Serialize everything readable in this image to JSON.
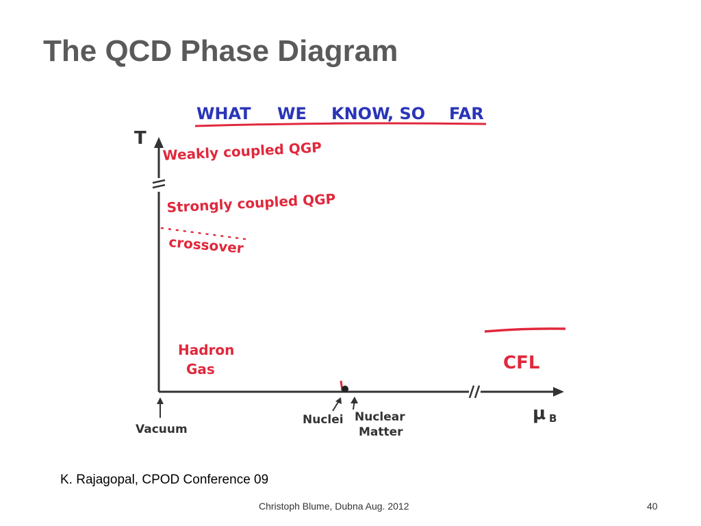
{
  "slide": {
    "title": "The QCD Phase Diagram",
    "citation": "K. Rajagopal, CPOD Conference 09",
    "footer": "Christoph Blume, Dubna Aug. 2012",
    "page_number": "40"
  },
  "diagram": {
    "heading": {
      "part1": "WHAT",
      "part2": "WE",
      "part3": "KNOW",
      "part4": ", SO",
      "part5": "FAR"
    },
    "y_axis_label": "T",
    "x_axis_label": "μ",
    "x_axis_subscript": "B",
    "regions": {
      "weakly": "Weakly coupled QGP",
      "strongly": "Strongly coupled QGP",
      "crossover": "crossover",
      "hadron_line1": "Hadron",
      "hadron_line2": "Gas",
      "cfl": "CFL"
    },
    "markers": {
      "vacuum": "Vacuum",
      "nuclei": "Nuclei",
      "nuclear_line1": "Nuclear",
      "nuclear_line2": "Matter"
    },
    "colors": {
      "blue_ink": "#2a35b8",
      "red_ink": "#e0283c",
      "black_ink": "#333333"
    }
  }
}
